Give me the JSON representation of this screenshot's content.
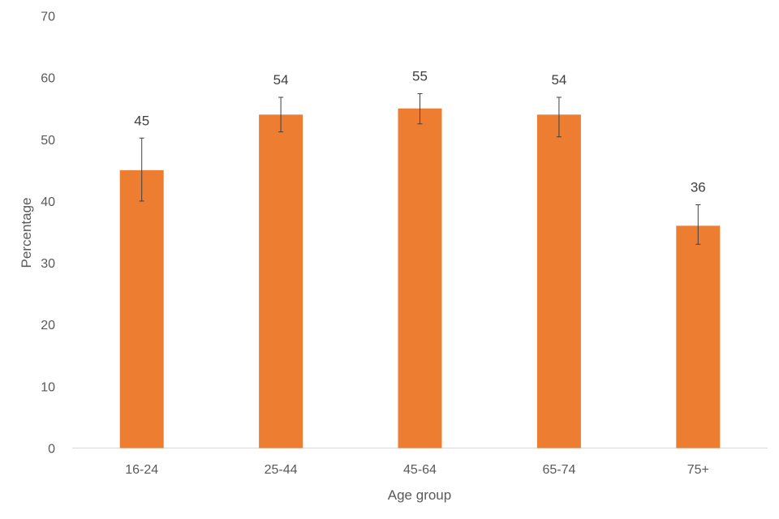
{
  "chart_data": {
    "type": "bar",
    "title": "",
    "xlabel": "Age group",
    "ylabel": "Percentage",
    "categories": [
      "16-24",
      "25-44",
      "45-64",
      "65-74",
      "75+"
    ],
    "values": [
      45,
      54,
      55,
      54,
      36
    ],
    "data_labels": [
      "45",
      "54",
      "55",
      "54",
      "36"
    ],
    "error_bars": [
      {
        "low": 40,
        "high": 50.2
      },
      {
        "low": 51.2,
        "high": 56.8
      },
      {
        "low": 52.5,
        "high": 57.4
      },
      {
        "low": 50.4,
        "high": 56.8
      },
      {
        "low": 33,
        "high": 39.4
      }
    ],
    "ylim": [
      0,
      70
    ],
    "yticks": [
      0,
      10,
      20,
      30,
      40,
      50,
      60,
      70
    ],
    "grid": false,
    "legend": "none",
    "bar_color": "#ed7d31"
  }
}
